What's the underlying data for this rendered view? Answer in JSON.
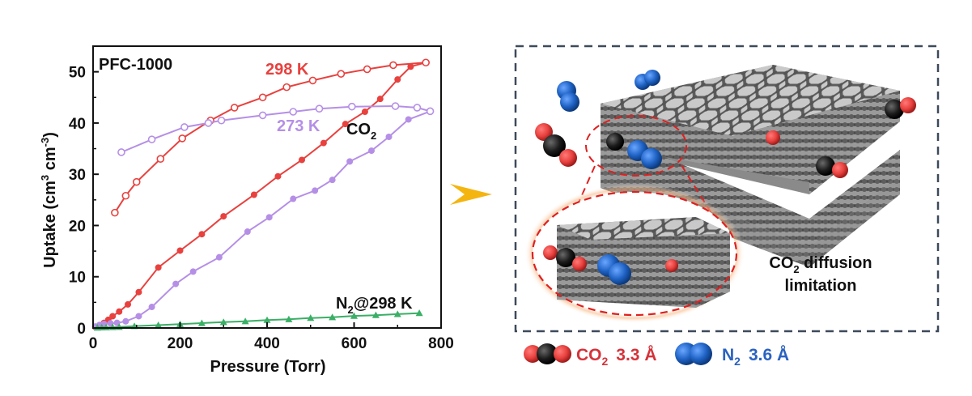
{
  "chart_data": {
    "type": "line",
    "title": "PFC-1000",
    "xlabel": "Pressure (Torr)",
    "ylabel": "Uptake (cm3 cm-3)",
    "xlim": [
      0,
      800
    ],
    "ylim": [
      0,
      55
    ],
    "xticks": [
      0,
      200,
      400,
      600,
      800
    ],
    "yticks": [
      0,
      10,
      20,
      30,
      40,
      50
    ],
    "grid": false,
    "series": [
      {
        "id": "co2_298_ads",
        "group": "298 K",
        "color": "#e8413e",
        "marker": "filled-circle",
        "x": [
          5,
          15,
          25,
          35,
          45,
          60,
          80,
          105,
          150,
          200,
          250,
          300,
          370,
          425,
          480,
          530,
          580,
          625,
          660,
          700,
          730,
          765
        ],
        "y": [
          0.2,
          0.5,
          1.0,
          1.6,
          2.3,
          3.2,
          4.6,
          7.0,
          11.8,
          15.1,
          18.3,
          21.8,
          26.0,
          29.6,
          32.8,
          36.1,
          39.8,
          42.2,
          44.7,
          48.5,
          51.0,
          51.8
        ]
      },
      {
        "id": "co2_298_des",
        "group": "298 K",
        "color": "#e8413e",
        "marker": "open-circle",
        "x": [
          50,
          75,
          100,
          155,
          205,
          270,
          325,
          390,
          445,
          505,
          570,
          630,
          690,
          765
        ],
        "y": [
          22.5,
          25.8,
          28.5,
          33.0,
          37.0,
          40.5,
          43.0,
          45.0,
          47.0,
          48.3,
          49.6,
          50.5,
          51.3,
          51.8
        ]
      },
      {
        "id": "co2_273_ads",
        "group": "273 K",
        "color": "#b58fe6",
        "marker": "filled-circle",
        "x": [
          5,
          15,
          25,
          40,
          55,
          75,
          105,
          135,
          190,
          230,
          290,
          355,
          405,
          460,
          510,
          550,
          590,
          640,
          680,
          725,
          775
        ],
        "y": [
          0.3,
          0.6,
          0.8,
          0.9,
          1.0,
          1.3,
          2.3,
          4.1,
          8.6,
          11.0,
          13.8,
          18.8,
          21.6,
          25.2,
          26.8,
          28.9,
          32.5,
          34.6,
          37.3,
          40.7,
          42.3
        ]
      },
      {
        "id": "co2_273_des",
        "group": "273 K",
        "color": "#b58fe6",
        "marker": "open-circle",
        "x": [
          65,
          135,
          210,
          265,
          295,
          390,
          460,
          520,
          595,
          695,
          745,
          775
        ],
        "y": [
          34.3,
          36.8,
          39.2,
          40.0,
          40.5,
          41.5,
          42.2,
          42.8,
          43.2,
          43.3,
          43.0,
          42.3
        ]
      },
      {
        "id": "n2_298",
        "group": "N2@298 K",
        "color": "#3aaf66",
        "marker": "filled-triangle",
        "x": [
          10,
          20,
          30,
          45,
          60,
          95,
          150,
          200,
          250,
          300,
          350,
          400,
          450,
          500,
          550,
          600,
          650,
          700,
          750
        ],
        "y": [
          0.05,
          0.1,
          0.12,
          0.15,
          0.2,
          0.35,
          0.55,
          0.75,
          0.95,
          1.15,
          1.3,
          1.55,
          1.7,
          1.95,
          2.1,
          2.35,
          2.5,
          2.7,
          2.9
        ]
      }
    ],
    "annotations": {
      "label_298": "298 K",
      "label_273": "273 K",
      "label_co2": "CO",
      "label_co2_sub": "2",
      "label_n2": "N",
      "label_n2_sub": "2",
      "label_n2_rest": "@298 K"
    },
    "ylabel_parts": {
      "main": "Uptake (cm",
      "sup1": "3",
      "mid": " cm",
      "sup2": "-3",
      "end": ")"
    }
  },
  "schematic": {
    "inset_caption_line1_pre": "CO",
    "inset_caption_line1_sub": "2",
    "inset_caption_line1_post": " diffusion",
    "inset_caption_line2": "limitation"
  },
  "legend": {
    "co2_pre": "CO",
    "co2_sub": "2",
    "co2_size": "3.3 Å",
    "n2_pre": "N",
    "n2_sub": "2",
    "n2_size": "3.6 Å"
  },
  "colors": {
    "co2_red": "#e8413e",
    "co2_273": "#b58fe6",
    "n2_green": "#3aaf66",
    "n2_blue": "#1f63c5",
    "legend_co2_text": "#d4333a",
    "legend_n2_text": "#2a62c0",
    "arrow": "#f5b510"
  }
}
